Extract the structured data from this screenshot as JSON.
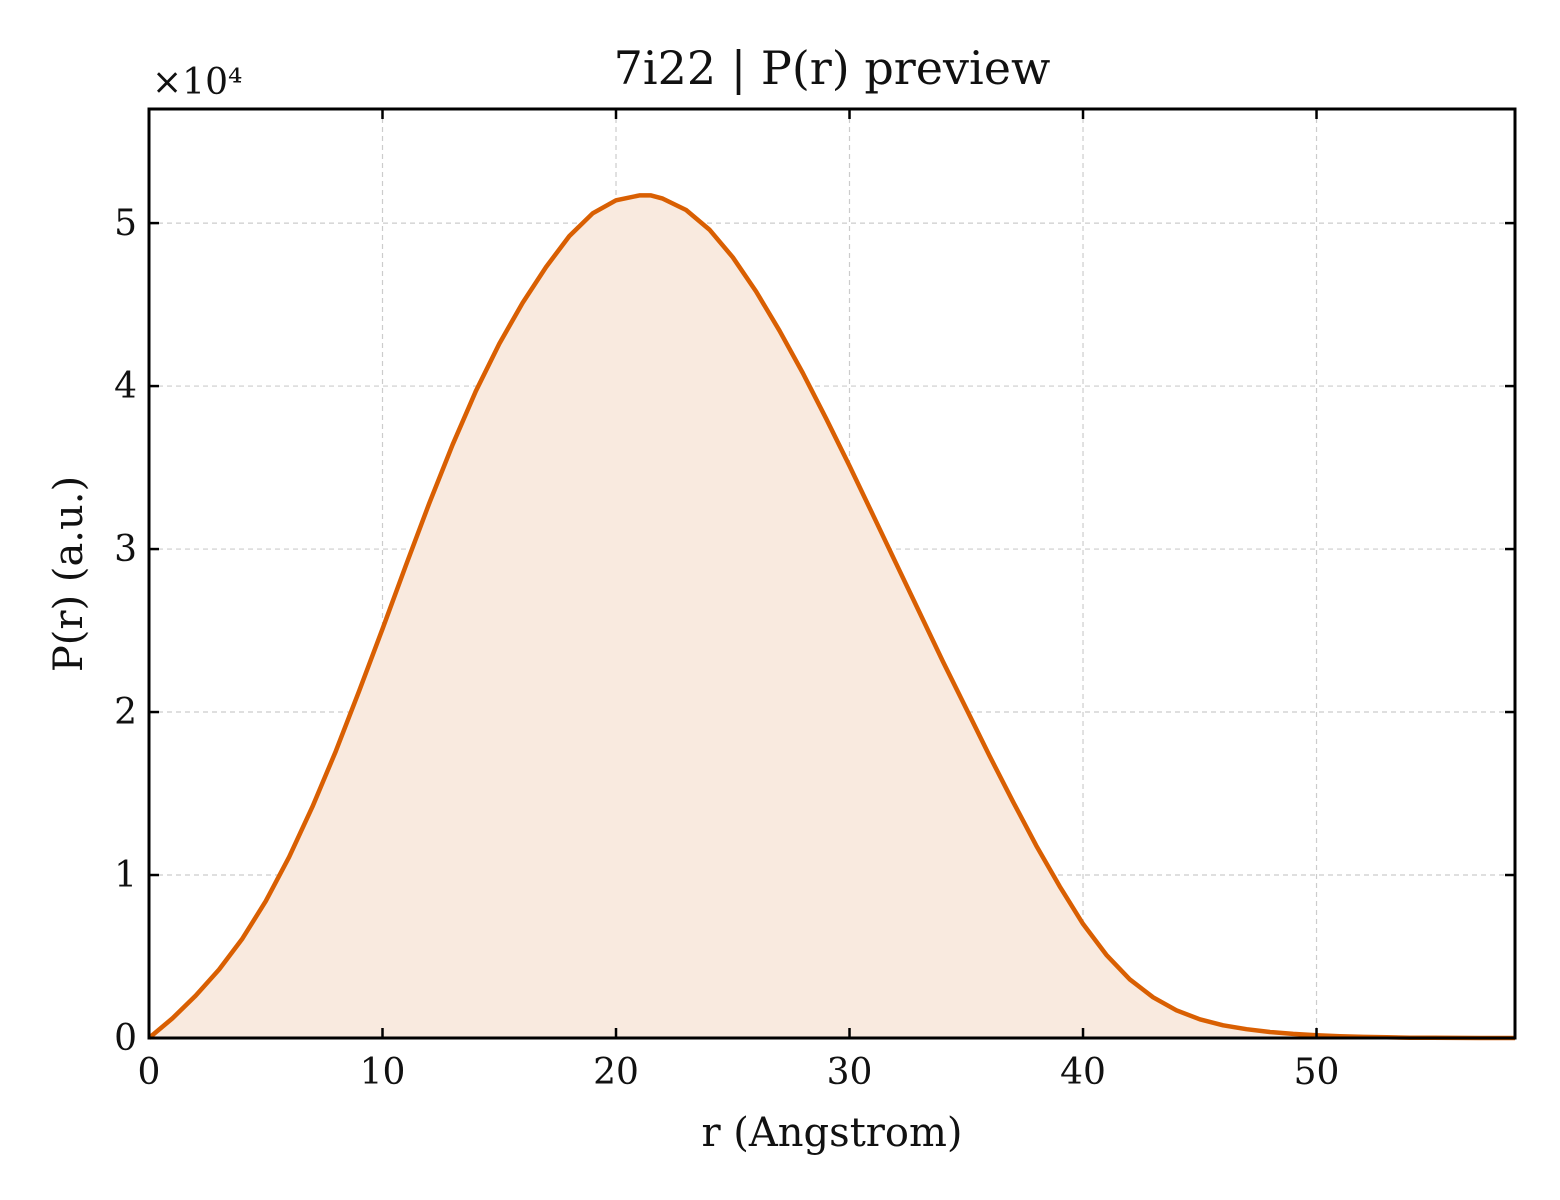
{
  "chart_data": {
    "type": "area",
    "title": "7i22 | P(r) preview",
    "xlabel": "r (Angstrom)",
    "ylabel": "P(r) (a.u.)",
    "y_multiplier": "×10⁴",
    "xlim": [
      0,
      58.5
    ],
    "ylim": [
      0,
      57000
    ],
    "x_ticks": [
      0,
      10,
      20,
      30,
      40,
      50
    ],
    "y_ticks": [
      0,
      10000,
      20000,
      30000,
      40000,
      50000
    ],
    "y_tick_labels": [
      "0",
      "1",
      "2",
      "3",
      "4",
      "5"
    ],
    "grid": true,
    "line_color": "#d95f02",
    "fill_color": "#f9eadf",
    "series": [
      {
        "x": [
          0,
          1,
          2,
          3,
          4,
          5,
          6,
          7,
          8,
          9,
          10,
          11,
          12,
          13,
          14,
          15,
          16,
          17,
          18,
          19,
          20,
          21,
          21.5,
          22,
          23,
          24,
          25,
          26,
          27,
          28,
          29,
          30,
          31,
          32,
          33,
          34,
          35,
          36,
          37,
          38,
          39,
          40,
          41,
          42,
          43,
          44,
          45,
          46,
          47,
          48,
          49,
          50,
          51,
          52,
          53,
          54,
          55,
          56,
          57,
          58.5
        ],
        "y": [
          0,
          1200,
          2600,
          4200,
          6100,
          8400,
          11100,
          14200,
          17600,
          21300,
          25100,
          29000,
          32800,
          36400,
          39700,
          42600,
          45100,
          47300,
          49200,
          50600,
          51400,
          51700,
          51700,
          51500,
          50800,
          49600,
          47900,
          45800,
          43400,
          40800,
          38000,
          35100,
          32100,
          29100,
          26100,
          23100,
          20200,
          17300,
          14500,
          11800,
          9300,
          7000,
          5100,
          3600,
          2500,
          1700,
          1150,
          780,
          540,
          370,
          250,
          170,
          110,
          70,
          40,
          20,
          10,
          5,
          0,
          0
        ]
      }
    ]
  }
}
